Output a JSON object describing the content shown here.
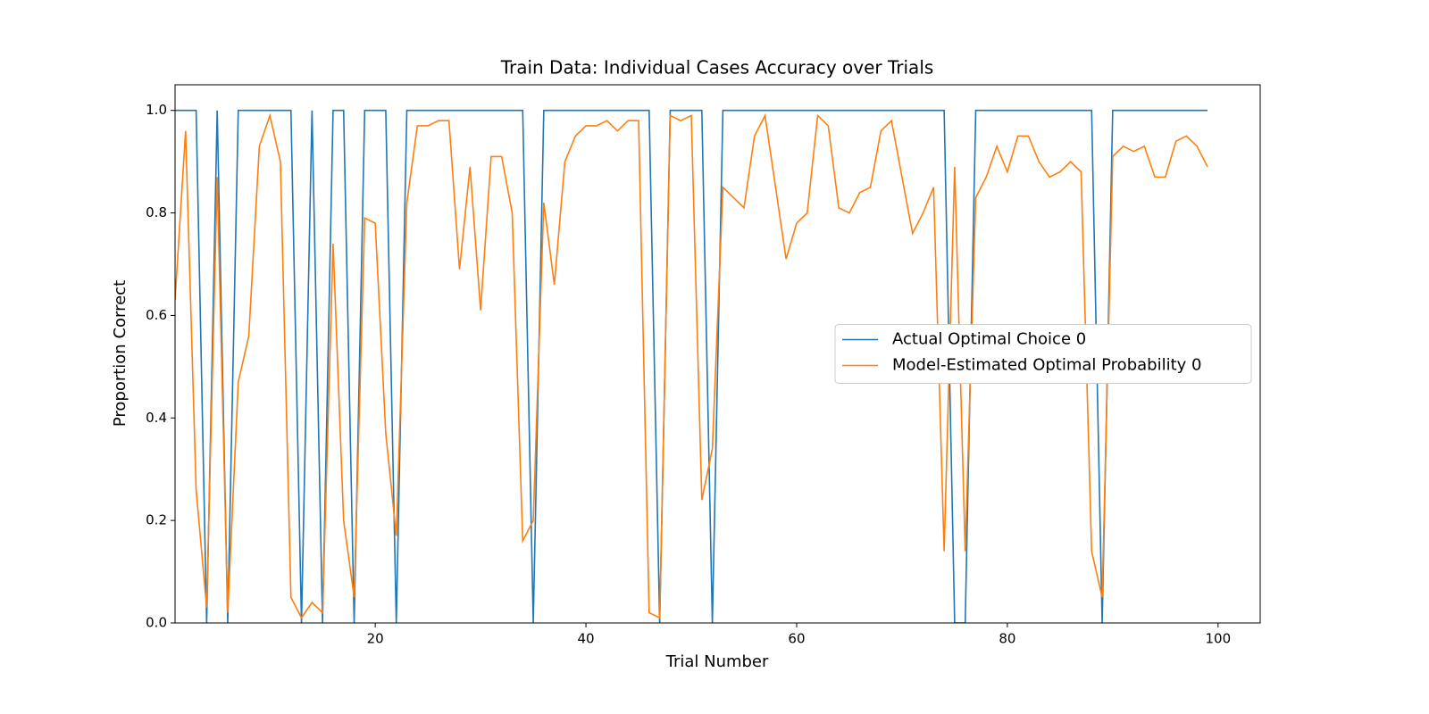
{
  "chart_data": {
    "type": "line",
    "title": "Train Data: Individual Cases Accuracy over Trials",
    "x_label": "Trial Number",
    "y_label": "Proportion Correct",
    "x": [
      1,
      2,
      3,
      4,
      5,
      6,
      7,
      8,
      9,
      10,
      11,
      12,
      13,
      14,
      15,
      16,
      17,
      18,
      19,
      20,
      21,
      22,
      23,
      24,
      25,
      26,
      27,
      28,
      29,
      30,
      31,
      32,
      33,
      34,
      35,
      36,
      37,
      38,
      39,
      40,
      41,
      42,
      43,
      44,
      45,
      46,
      47,
      48,
      49,
      50,
      51,
      52,
      53,
      54,
      55,
      56,
      57,
      58,
      59,
      60,
      61,
      62,
      63,
      64,
      65,
      66,
      67,
      68,
      69,
      70,
      71,
      72,
      73,
      74,
      75,
      76,
      77,
      78,
      79,
      80,
      81,
      82,
      83,
      84,
      85,
      86,
      87,
      88,
      89,
      90,
      91,
      92,
      93,
      94,
      95,
      96,
      97,
      98,
      99
    ],
    "series": [
      {
        "name": "Actual Optimal Choice 0",
        "color": "#1f77b4",
        "values": [
          1,
          1,
          1,
          0,
          1,
          0,
          1,
          1,
          1,
          1,
          1,
          1,
          0,
          1,
          0,
          1,
          1,
          0,
          1,
          1,
          1,
          0,
          1,
          1,
          1,
          1,
          1,
          1,
          1,
          1,
          1,
          1,
          1,
          1,
          0,
          1,
          1,
          1,
          1,
          1,
          1,
          1,
          1,
          1,
          1,
          1,
          0,
          1,
          1,
          1,
          1,
          0,
          1,
          1,
          1,
          1,
          1,
          1,
          1,
          1,
          1,
          1,
          1,
          1,
          1,
          1,
          1,
          1,
          1,
          1,
          1,
          1,
          1,
          1,
          0,
          0,
          1,
          1,
          1,
          1,
          1,
          1,
          1,
          1,
          1,
          1,
          1,
          1,
          0,
          1,
          1,
          1,
          1,
          1,
          1,
          1,
          1,
          1,
          1
        ]
      },
      {
        "name": "Model-Estimated Optimal Probability 0",
        "color": "#ff7f0e",
        "values": [
          0.63,
          0.96,
          0.26,
          0.03,
          0.87,
          0.02,
          0.47,
          0.56,
          0.93,
          0.99,
          0.9,
          0.05,
          0.01,
          0.04,
          0.02,
          0.74,
          0.2,
          0.05,
          0.79,
          0.78,
          0.37,
          0.17,
          0.82,
          0.97,
          0.97,
          0.98,
          0.98,
          0.69,
          0.89,
          0.61,
          0.91,
          0.91,
          0.8,
          0.16,
          0.2,
          0.82,
          0.66,
          0.9,
          0.95,
          0.97,
          0.97,
          0.98,
          0.96,
          0.98,
          0.98,
          0.02,
          0.01,
          0.99,
          0.98,
          0.99,
          0.24,
          0.34,
          0.85,
          0.83,
          0.81,
          0.95,
          0.99,
          0.85,
          0.71,
          0.78,
          0.8,
          0.99,
          0.97,
          0.81,
          0.8,
          0.84,
          0.85,
          0.96,
          0.98,
          0.87,
          0.76,
          0.8,
          0.85,
          0.14,
          0.89,
          0.14,
          0.83,
          0.87,
          0.93,
          0.88,
          0.95,
          0.95,
          0.9,
          0.87,
          0.88,
          0.9,
          0.88,
          0.14,
          0.05,
          0.91,
          0.93,
          0.92,
          0.93,
          0.87,
          0.87,
          0.94,
          0.95,
          0.93,
          0.89
        ]
      }
    ],
    "xlim": [
      1,
      104
    ],
    "ylim": [
      0,
      1.05
    ],
    "xticks": [
      20,
      40,
      60,
      80,
      100
    ],
    "yticks": [
      {
        "value": 0,
        "label": "0.0"
      },
      {
        "value": 0.2,
        "label": "0.2"
      },
      {
        "value": 0.4,
        "label": "0.4"
      },
      {
        "value": 0.6,
        "label": "0.6"
      },
      {
        "value": 0.8,
        "label": "0.8"
      },
      {
        "value": 1,
        "label": "1.0"
      }
    ],
    "legend": "center right"
  }
}
